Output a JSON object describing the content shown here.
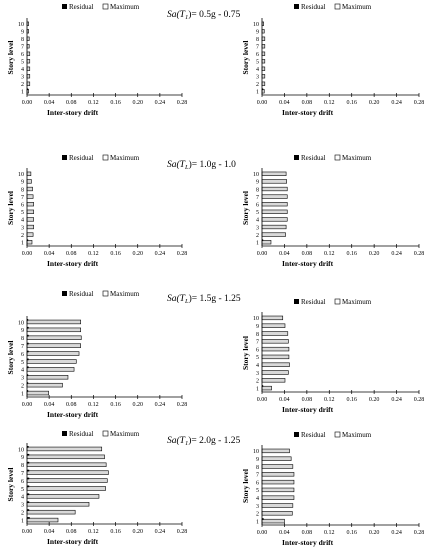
{
  "legend": {
    "residual": "Residual",
    "maximum": "Maximum"
  },
  "axis": {
    "xlabel": "Inter-story drift",
    "ylabel": "Story level",
    "xticks": [
      "0.00",
      "0.04",
      "0.08",
      "0.12",
      "0.16",
      "0.20",
      "0.24",
      "0.28"
    ],
    "yticks": [
      "1",
      "2",
      "3",
      "4",
      "5",
      "6",
      "7",
      "8",
      "9",
      "10"
    ]
  },
  "row_titles": [
    {
      "prefix": "Sa(T",
      "sub": "1",
      "suffix": ")= 0.5g - 0.75"
    },
    {
      "prefix": "Sa(T",
      "sub": "L",
      "suffix": ")= 1.0g - 1.0"
    },
    {
      "prefix": "Sa(T",
      "sub": "L",
      "suffix": ")= 1.5g - 1.25"
    },
    {
      "prefix": "Sa(T",
      "sub": "1",
      "suffix": ")= 2.0g - 1.25"
    }
  ],
  "colors": {
    "residual": "#000000",
    "maximum": "#d9d9d9",
    "outline": "#000000"
  },
  "chart_data": [
    {
      "type": "bar",
      "orientation": "horizontal",
      "row": 1,
      "column": "left",
      "categories": [
        "1",
        "2",
        "3",
        "4",
        "5",
        "6",
        "7",
        "8",
        "9",
        "10"
      ],
      "xlim": [
        0,
        0.28
      ],
      "xlabel": "Inter-story drift",
      "ylabel": "Story level",
      "grid": false,
      "legend": "top",
      "series": [
        {
          "name": "Residual",
          "values": [
            0.001,
            0,
            0,
            0,
            0,
            0,
            0,
            0,
            0,
            0
          ]
        },
        {
          "name": "Maximum",
          "values": [
            0.003,
            0.005,
            0.005,
            0.005,
            0.005,
            0.005,
            0.004,
            0.004,
            0.003,
            0.003
          ]
        }
      ]
    },
    {
      "type": "bar",
      "orientation": "horizontal",
      "row": 1,
      "column": "right",
      "categories": [
        "1",
        "2",
        "3",
        "4",
        "5",
        "6",
        "7",
        "8",
        "9",
        "10"
      ],
      "xlim": [
        0,
        0.28
      ],
      "xlabel": "Inter-story drift",
      "ylabel": "Story level",
      "grid": false,
      "legend": "top",
      "series": [
        {
          "name": "Residual",
          "values": [
            0.001,
            0,
            0,
            0,
            0,
            0,
            0,
            0,
            0,
            0
          ]
        },
        {
          "name": "Maximum",
          "values": [
            0.004,
            0.005,
            0.005,
            0.005,
            0.005,
            0.005,
            0.005,
            0.005,
            0.004,
            0.003
          ]
        }
      ]
    },
    {
      "type": "bar",
      "orientation": "horizontal",
      "row": 2,
      "column": "left",
      "categories": [
        "1",
        "2",
        "3",
        "4",
        "5",
        "6",
        "7",
        "8",
        "9",
        "10"
      ],
      "xlim": [
        0,
        0.28
      ],
      "xlabel": "Inter-story drift",
      "ylabel": "Story level",
      "grid": false,
      "legend": "top",
      "series": [
        {
          "name": "Residual",
          "values": [
            0.001,
            0,
            0,
            0,
            0,
            0,
            0,
            0,
            0,
            0
          ]
        },
        {
          "name": "Maximum",
          "values": [
            0.009,
            0.011,
            0.012,
            0.012,
            0.012,
            0.012,
            0.011,
            0.01,
            0.008,
            0.007
          ]
        }
      ]
    },
    {
      "type": "bar",
      "orientation": "horizontal",
      "row": 2,
      "column": "right",
      "categories": [
        "1",
        "2",
        "3",
        "4",
        "5",
        "6",
        "7",
        "8",
        "9",
        "10"
      ],
      "xlim": [
        0,
        0.28
      ],
      "xlabel": "Inter-story drift",
      "ylabel": "Story level",
      "grid": false,
      "legend": "top",
      "series": [
        {
          "name": "Residual",
          "values": [
            0.001,
            0,
            0,
            0,
            0,
            0,
            0,
            0,
            0,
            0
          ]
        },
        {
          "name": "Maximum",
          "values": [
            0.016,
            0.042,
            0.043,
            0.045,
            0.045,
            0.045,
            0.045,
            0.045,
            0.044,
            0.043
          ]
        }
      ]
    },
    {
      "type": "bar",
      "orientation": "horizontal",
      "row": 3,
      "column": "left",
      "categories": [
        "1",
        "2",
        "3",
        "4",
        "5",
        "6",
        "7",
        "8",
        "9",
        "10"
      ],
      "xlim": [
        0,
        0.28
      ],
      "xlabel": "Inter-story drift",
      "ylabel": "Story level",
      "grid": false,
      "legend": "top",
      "series": [
        {
          "name": "Residual",
          "values": [
            0.001,
            0.002,
            0.002,
            0.003,
            0.003,
            0.003,
            0.003,
            0.003,
            0.003,
            0.002
          ]
        },
        {
          "name": "Maximum",
          "values": [
            0.039,
            0.064,
            0.074,
            0.085,
            0.089,
            0.094,
            0.097,
            0.098,
            0.097,
            0.097
          ]
        }
      ]
    },
    {
      "type": "bar",
      "orientation": "horizontal",
      "row": 3,
      "column": "right",
      "categories": [
        "1",
        "2",
        "3",
        "4",
        "5",
        "6",
        "7",
        "8",
        "9",
        "10"
      ],
      "xlim": [
        0,
        0.28
      ],
      "xlabel": "Inter-story drift",
      "ylabel": "Story level",
      "grid": false,
      "legend": "top",
      "series": [
        {
          "name": "Residual",
          "values": [
            0.001,
            0,
            0,
            0,
            0,
            0,
            0,
            0,
            0,
            0
          ]
        },
        {
          "name": "Maximum",
          "values": [
            0.017,
            0.041,
            0.047,
            0.049,
            0.048,
            0.048,
            0.047,
            0.046,
            0.041,
            0.037
          ]
        }
      ]
    },
    {
      "type": "bar",
      "orientation": "horizontal",
      "row": 4,
      "column": "left",
      "categories": [
        "1",
        "2",
        "3",
        "4",
        "5",
        "6",
        "7",
        "8",
        "9",
        "10"
      ],
      "xlim": [
        0,
        0.28
      ],
      "xlabel": "Inter-story drift",
      "ylabel": "Story level",
      "grid": false,
      "legend": "top",
      "series": [
        {
          "name": "Residual",
          "values": [
            0.005,
            0.004,
            0.004,
            0.004,
            0.004,
            0.004,
            0.004,
            0.004,
            0.004,
            0.003
          ]
        },
        {
          "name": "Maximum",
          "values": [
            0.056,
            0.087,
            0.112,
            0.13,
            0.142,
            0.145,
            0.147,
            0.143,
            0.14,
            0.135
          ]
        }
      ]
    },
    {
      "type": "bar",
      "orientation": "horizontal",
      "row": 4,
      "column": "right",
      "categories": [
        "1",
        "2",
        "3",
        "4",
        "5",
        "6",
        "7",
        "8",
        "9",
        "10"
      ],
      "xlim": [
        0,
        0.28
      ],
      "xlabel": "Inter-story drift",
      "ylabel": "Story level",
      "grid": false,
      "legend": "top",
      "series": [
        {
          "name": "Residual",
          "values": [
            0.003,
            0,
            0,
            0,
            0,
            0,
            0,
            0,
            0,
            0
          ]
        },
        {
          "name": "Maximum",
          "values": [
            0.04,
            0.054,
            0.055,
            0.057,
            0.057,
            0.057,
            0.057,
            0.055,
            0.052,
            0.049
          ]
        }
      ]
    }
  ]
}
